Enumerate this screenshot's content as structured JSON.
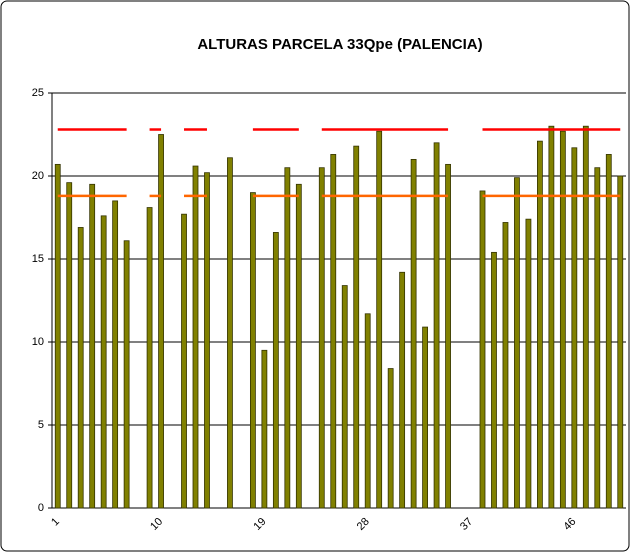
{
  "chart_data": {
    "type": "bar",
    "title": "ALTURAS PARCELA 33Qpe (PALENCIA)",
    "categories": [
      "1",
      null,
      null,
      null,
      null,
      null,
      null,
      null,
      null,
      "10",
      null,
      null,
      null,
      null,
      null,
      null,
      null,
      null,
      "19",
      null,
      null,
      null,
      null,
      null,
      null,
      null,
      null,
      "28",
      null,
      null,
      null,
      null,
      null,
      null,
      null,
      null,
      "37",
      null,
      null,
      null,
      null,
      null,
      null,
      null,
      null,
      "46",
      null,
      null,
      null,
      null
    ],
    "series": [
      {
        "type": "bar",
        "color": "#808000",
        "values": [
          20.7,
          19.6,
          16.9,
          19.5,
          17.6,
          18.5,
          16.1,
          null,
          18.1,
          22.5,
          null,
          17.7,
          20.6,
          20.2,
          null,
          21.1,
          null,
          19.0,
          9.5,
          16.6,
          20.5,
          19.5,
          null,
          20.5,
          21.3,
          13.4,
          21.8,
          11.7,
          22.7,
          8.4,
          14.2,
          21.0,
          10.9,
          22.0,
          20.7,
          null,
          null,
          19.1,
          15.4,
          17.2,
          19.9,
          17.4,
          22.1,
          23.0,
          22.7,
          21.7,
          23.0,
          20.5,
          21.3,
          20.0
        ]
      },
      {
        "type": "line",
        "color": "#ff0000",
        "values": [
          22.8,
          22.8,
          22.8,
          22.8,
          22.8,
          22.8,
          22.8,
          null,
          22.8,
          22.8,
          null,
          22.8,
          22.8,
          22.8,
          null,
          22.8,
          null,
          22.8,
          22.8,
          22.8,
          22.8,
          22.8,
          null,
          22.8,
          22.8,
          22.8,
          22.8,
          22.8,
          22.8,
          22.8,
          22.8,
          22.8,
          22.8,
          22.8,
          22.8,
          null,
          null,
          22.8,
          22.8,
          22.8,
          22.8,
          22.8,
          22.8,
          22.8,
          22.8,
          22.8,
          22.8,
          22.8,
          22.8,
          22.8
        ]
      },
      {
        "type": "line",
        "color": "#ff6600",
        "values": [
          18.8,
          18.8,
          18.8,
          18.8,
          18.8,
          18.8,
          18.8,
          null,
          18.8,
          18.8,
          null,
          18.8,
          18.8,
          18.8,
          null,
          18.8,
          null,
          18.8,
          18.8,
          18.8,
          18.8,
          18.8,
          null,
          18.8,
          18.8,
          18.8,
          18.8,
          18.8,
          18.8,
          18.8,
          18.8,
          18.8,
          18.8,
          18.8,
          18.8,
          null,
          null,
          18.8,
          18.8,
          18.8,
          18.8,
          18.8,
          18.8,
          18.8,
          18.8,
          18.8,
          18.8,
          18.8,
          18.8,
          18.8
        ]
      }
    ],
    "ylim": [
      0,
      25
    ],
    "yticks": [
      0,
      5,
      10,
      15,
      20,
      25
    ],
    "grid": true
  }
}
